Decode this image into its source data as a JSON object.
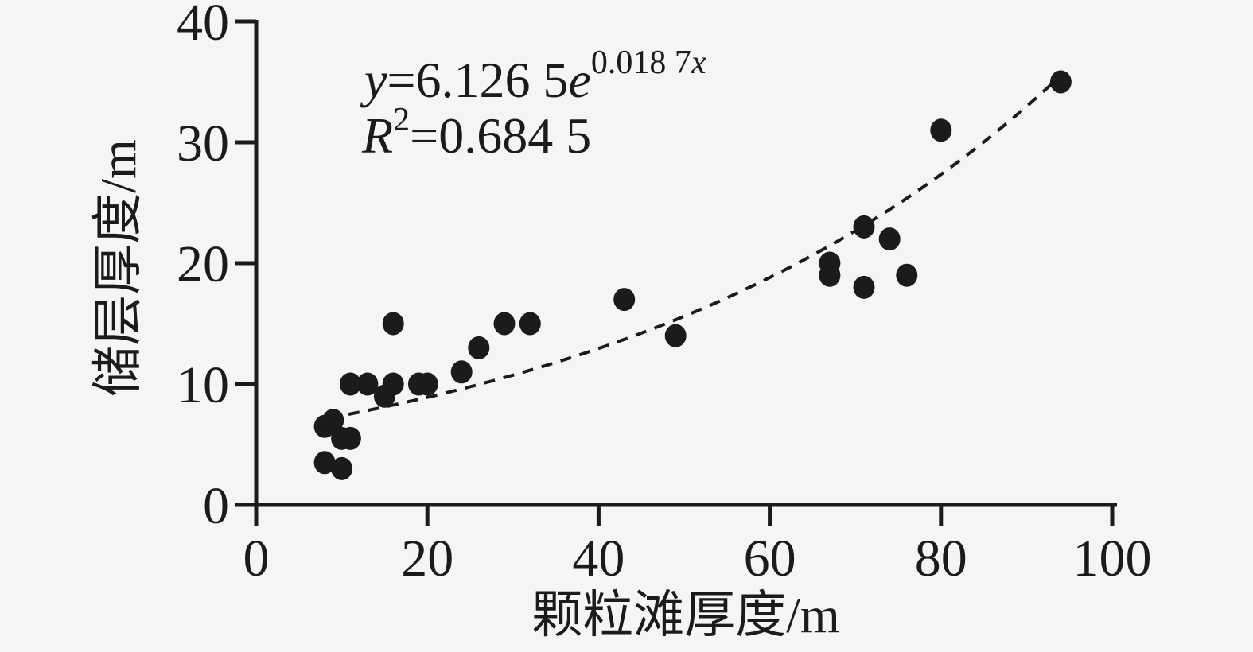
{
  "page": {
    "background_color": "#f5f5f3",
    "ink_color": "#1b1b1b"
  },
  "chart_data": {
    "type": "scatter",
    "title": "",
    "xlabel": "颗粒滩厚度/m",
    "ylabel": "储层厚度/m",
    "xlim": [
      0,
      100
    ],
    "ylim": [
      0,
      40
    ],
    "x_ticks": [
      0,
      20,
      40,
      60,
      80,
      100
    ],
    "y_ticks": [
      0,
      10,
      20,
      30,
      40
    ],
    "grid": false,
    "legend": false,
    "marker": {
      "shape": "circle",
      "color": "#1b1b1b",
      "radius_px": 14
    },
    "points": [
      [
        8,
        3.5
      ],
      [
        10,
        3
      ],
      [
        8,
        6.5
      ],
      [
        9,
        7
      ],
      [
        10,
        5.5
      ],
      [
        11,
        5.5
      ],
      [
        11,
        10
      ],
      [
        13,
        10
      ],
      [
        15,
        9
      ],
      [
        16,
        10
      ],
      [
        16,
        15
      ],
      [
        19,
        10
      ],
      [
        20,
        10
      ],
      [
        24,
        11
      ],
      [
        26,
        13
      ],
      [
        29,
        15
      ],
      [
        32,
        15
      ],
      [
        43,
        17
      ],
      [
        49,
        14
      ],
      [
        67,
        19
      ],
      [
        67,
        20
      ],
      [
        71,
        18
      ],
      [
        71,
        23
      ],
      [
        74,
        22
      ],
      [
        76,
        19
      ],
      [
        80,
        31
      ],
      [
        94,
        35
      ]
    ],
    "trendline": {
      "kind": "exponential",
      "a": 6.1265,
      "b": 0.0187,
      "x_start": 8.5,
      "x_end": 93.5,
      "dashed": true
    },
    "annotations": {
      "equation": {
        "lhs": "y",
        "equals_and_coef": "=6.126 5",
        "base": "e",
        "exponent_coef": "0.018 7",
        "exponent_var": "x"
      },
      "r_squared": {
        "symbol": "R",
        "superscript": "2",
        "value": "=0.684 5"
      }
    }
  }
}
